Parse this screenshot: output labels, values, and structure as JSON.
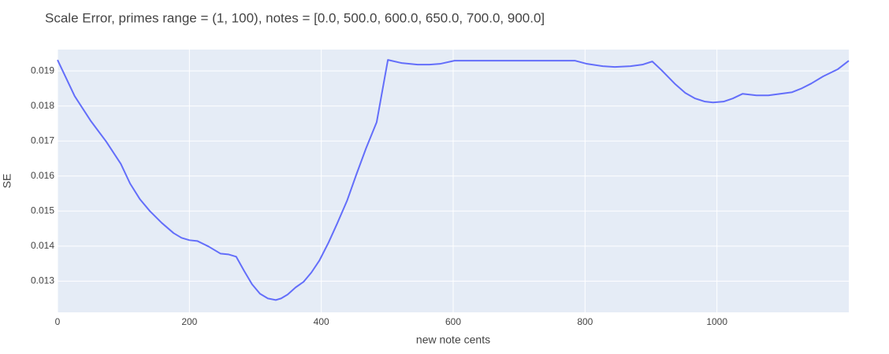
{
  "chart_data": {
    "type": "line",
    "title": "Scale Error, primes range = (1, 100), notes = [0.0, 500.0, 600.0, 650.0, 700.0, 900.0]",
    "x_label": "new note cents",
    "y_label": "SE",
    "x": [
      0,
      26,
      50,
      74,
      96,
      110,
      125,
      140,
      158,
      176,
      188,
      200,
      212,
      229,
      247,
      259,
      271,
      283,
      295,
      307,
      319,
      331,
      339,
      349,
      361,
      373,
      385,
      397,
      411,
      424,
      439,
      453,
      468,
      484,
      501,
      522,
      546,
      564,
      580,
      602,
      785,
      803,
      827,
      845,
      869,
      887,
      902,
      916,
      937,
      952,
      967,
      982,
      994,
      1010,
      1024,
      1039,
      1060,
      1078,
      1096,
      1114,
      1129,
      1143,
      1161,
      1183,
      1200
    ],
    "values": [
      0.019315,
      0.018281,
      0.017584,
      0.016978,
      0.016348,
      0.015787,
      0.015337,
      0.015,
      0.014663,
      0.014371,
      0.014236,
      0.014169,
      0.014146,
      0.013989,
      0.013787,
      0.013764,
      0.013697,
      0.013292,
      0.01291,
      0.01264,
      0.012506,
      0.012461,
      0.012506,
      0.012618,
      0.01282,
      0.012978,
      0.013247,
      0.013584,
      0.014101,
      0.01464,
      0.015292,
      0.016034,
      0.016798,
      0.017539,
      0.019315,
      0.019225,
      0.01918,
      0.01918,
      0.019202,
      0.019292,
      0.019292,
      0.019202,
      0.019135,
      0.019112,
      0.019135,
      0.01918,
      0.01927,
      0.019022,
      0.018618,
      0.018371,
      0.018213,
      0.018124,
      0.018101,
      0.018124,
      0.018213,
      0.018348,
      0.018303,
      0.018303,
      0.018348,
      0.018393,
      0.018506,
      0.01864,
      0.018843,
      0.019045,
      0.019292
    ],
    "color": "#636efa",
    "xlim": [
      0,
      1200
    ],
    "ylim": [
      0.01211,
      0.01961
    ],
    "xticks": [
      0,
      200,
      400,
      600,
      800,
      1000
    ],
    "yticks": [
      0.013,
      0.014,
      0.015,
      0.016,
      0.017,
      0.018,
      0.019
    ],
    "grid": true
  }
}
